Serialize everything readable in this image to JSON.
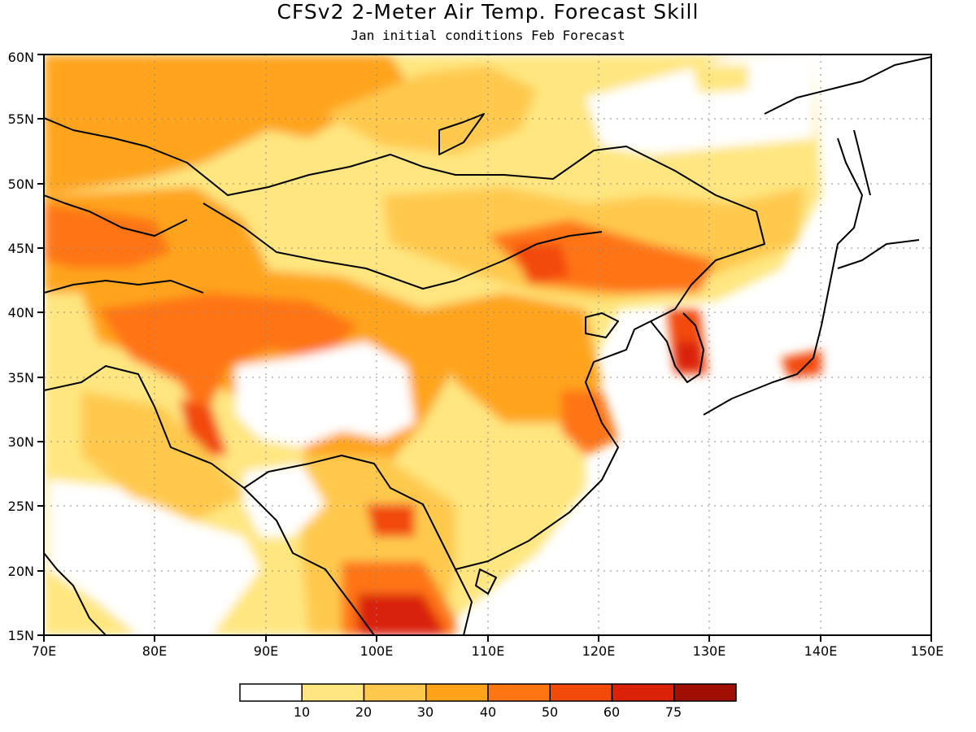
{
  "title": "CFSv2 2-Meter Air Temp. Forecast Skill",
  "subtitle": "Jan initial conditions  Feb Forecast",
  "map": {
    "lon_range": [
      70,
      150
    ],
    "lat_range": [
      15,
      60
    ],
    "lon_ticks": [
      "70E",
      "80E",
      "90E",
      "100E",
      "110E",
      "120E",
      "130E",
      "140E",
      "150E"
    ],
    "lat_ticks": [
      "15N",
      "20N",
      "25N",
      "30N",
      "35N",
      "40N",
      "45N",
      "50N",
      "55N",
      "60N"
    ],
    "gridlines": "dotted"
  },
  "legend": {
    "colors": [
      "#ffffff",
      "#ffe680",
      "#ffc94d",
      "#ffa41a",
      "#ff7512",
      "#f24a0a",
      "#d92208",
      "#a00e04"
    ],
    "labels": [
      "10",
      "20",
      "30",
      "40",
      "50",
      "60",
      "75"
    ]
  }
}
